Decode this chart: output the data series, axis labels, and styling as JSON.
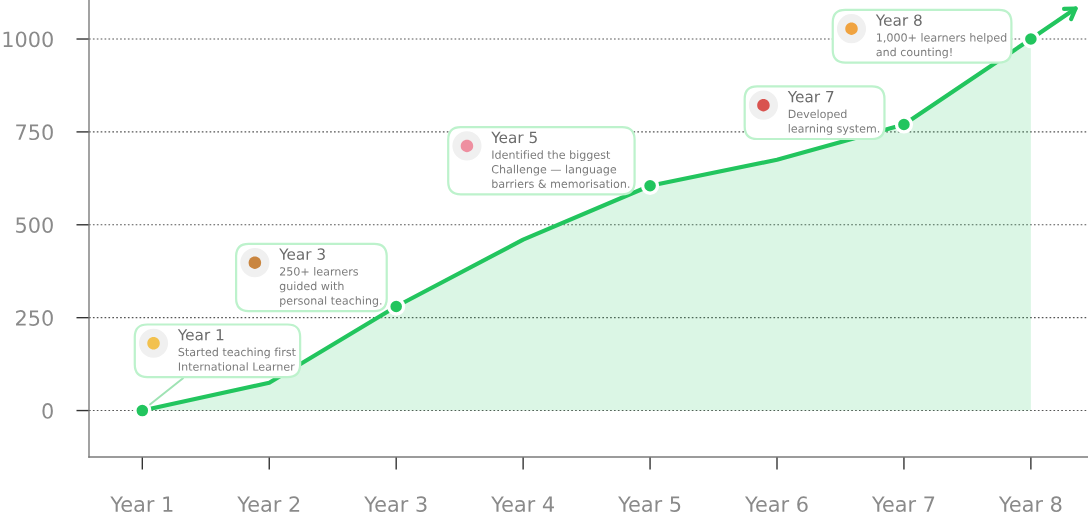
{
  "chart_data": {
    "type": "area",
    "categories": [
      "Year 1",
      "Year 2",
      "Year 3",
      "Year 4",
      "Year 5",
      "Year 6",
      "Year 7",
      "Year 8"
    ],
    "series": [
      {
        "color": "#22c55e",
        "values": [
          0,
          75,
          280,
          460,
          605,
          675,
          770,
          1000
        ]
      },
      {
        "type": "scatter",
        "color": "#22c55e",
        "marker": "circle",
        "x": [
          "Year 1",
          "Year 3",
          "Year 5",
          "Year 7",
          "Year 8"
        ],
        "values": [
          0,
          280,
          605,
          770,
          1000
        ]
      }
    ],
    "ylim": [
      -125,
      1105
    ],
    "yticks": [
      0,
      250,
      500,
      750,
      1000
    ],
    "grid": "y",
    "annotations": [
      {
        "text": "Year 1\nStarted teaching first\nInternational Learner",
        "x": "Year 1",
        "y": 0
      },
      {
        "text": "Year 3\n250+ learners\nguided with\npersonal teaching.",
        "x": "Year 3",
        "y": 280
      },
      {
        "text": "Year 5\nIdentified the biggest\nChallenge — language\nbarriers & memorisation.",
        "x": "Year 5",
        "y": 605
      },
      {
        "text": "Year 7\nDeveloped\nlearning system.",
        "x": "Year 7",
        "y": 770
      },
      {
        "text": "Year 8\n1,000+ learners helped\nand counting!",
        "x": "Year 8",
        "y": 1000
      }
    ]
  }
}
